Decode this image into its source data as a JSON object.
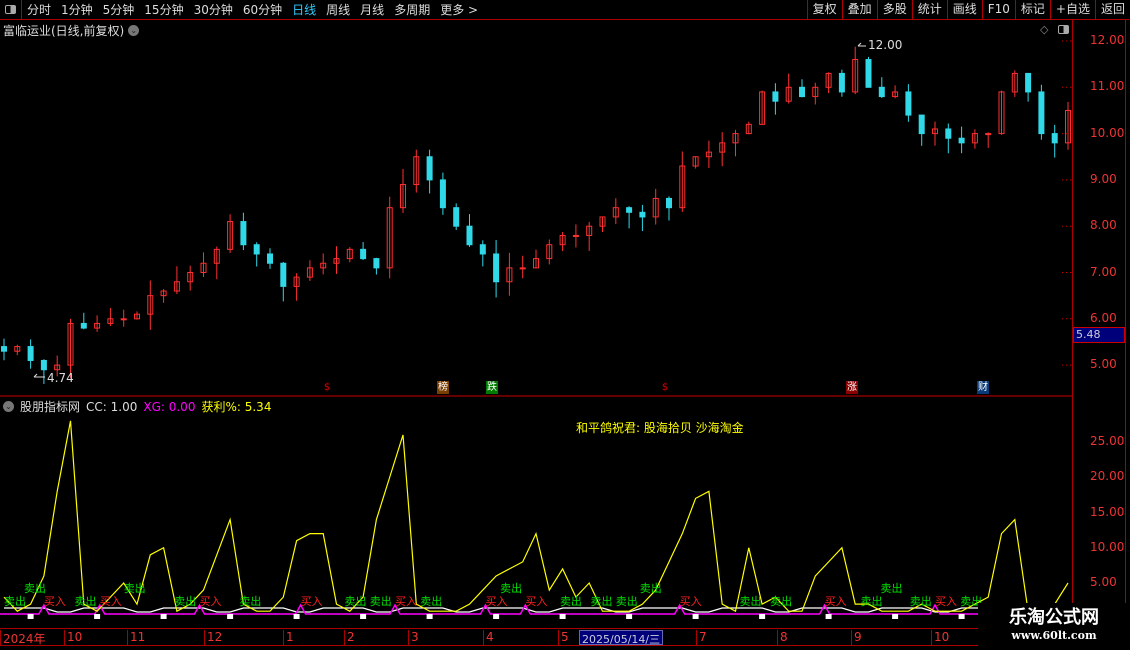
{
  "toolbar": {
    "periods": [
      "分时",
      "1分钟",
      "5分钟",
      "15分钟",
      "30分钟",
      "60分钟",
      "日线",
      "周线",
      "月线",
      "多周期",
      "更多 >"
    ],
    "active": "日线",
    "right": [
      "复权",
      "叠加",
      "多股",
      "统计",
      "画线",
      "F10",
      "标记",
      "+自选",
      "返回"
    ]
  },
  "stock_title": "富临运业(日线,前复权)",
  "price_axis": [
    "12.00",
    "11.00",
    "10.00",
    "9.00",
    "8.00",
    "7.00",
    "6.00",
    "5.00"
  ],
  "current_price": "5.48",
  "annotations": {
    "high": "12.00",
    "low": "4.74"
  },
  "markers": [
    {
      "text": "$",
      "color": "#e00000"
    },
    {
      "text": "榜",
      "color": "#7a3d00"
    },
    {
      "text": "跌",
      "color": "#007a00"
    },
    {
      "text": "$",
      "color": "#e00000"
    },
    {
      "text": "涨",
      "color": "#8a0000"
    },
    {
      "text": "财",
      "color": "#0a3a7a"
    }
  ],
  "indicator": {
    "name": "股朋指标网",
    "cc": "CC: 1.00",
    "xg": "XG: 0.00",
    "profit": "获利%: 5.34",
    "slogan": "和平鸽祝君:  股海拾贝  沙海淘金",
    "axis": [
      "25.00",
      "20.00",
      "15.00",
      "10.00",
      "5.00"
    ],
    "buy": "买入",
    "sell": "卖出"
  },
  "time_axis": [
    "2024年",
    "10",
    "11",
    "12",
    "1",
    "2",
    "3",
    "4",
    "5",
    "7",
    "8",
    "9",
    "10"
  ],
  "cursor_date": "2025/05/14/三",
  "watermark": {
    "title": "乐淘公式网",
    "url": "www.60lt.com"
  },
  "colors": {
    "up": "#ff3030",
    "down": "#30d8e8",
    "axis": "#aa0000",
    "indicator": "#ffff00",
    "buy": "#ff2020",
    "sell": "#00e000"
  },
  "chart_data": {
    "type": "candlestick",
    "price_range": [
      4.6,
      12.1
    ],
    "closes": [
      5.3,
      5.4,
      5.1,
      4.9,
      5.0,
      5.9,
      5.8,
      5.9,
      6.0,
      6.0,
      6.1,
      6.5,
      6.6,
      6.8,
      7.0,
      7.2,
      7.5,
      8.1,
      7.6,
      7.4,
      7.2,
      6.7,
      6.9,
      7.1,
      7.2,
      7.3,
      7.5,
      7.3,
      7.1,
      8.4,
      8.9,
      9.5,
      9.0,
      8.4,
      8.0,
      7.6,
      7.4,
      6.8,
      7.1,
      7.1,
      7.3,
      7.6,
      7.8,
      7.8,
      8.0,
      8.2,
      8.4,
      8.3,
      8.2,
      8.6,
      8.4,
      9.3,
      9.5,
      9.6,
      9.8,
      10.0,
      10.2,
      10.9,
      10.7,
      11.0,
      10.8,
      11.0,
      11.3,
      10.9,
      11.6,
      11.0,
      10.8,
      10.9,
      10.4,
      10.0,
      10.1,
      9.9,
      9.8,
      10.0,
      10.0,
      10.9,
      11.3,
      10.9,
      10.0,
      9.8,
      10.5
    ],
    "indicator_range": [
      0,
      29
    ],
    "indicator": [
      3,
      1,
      2,
      6,
      18,
      28,
      2,
      1,
      3,
      5,
      2,
      9,
      10,
      1,
      2,
      4,
      9,
      14,
      2,
      1,
      1,
      3,
      11,
      12,
      12,
      2,
      1,
      3,
      14,
      20,
      26,
      2,
      1,
      1,
      1,
      2,
      4,
      6,
      7,
      8,
      12,
      4,
      7,
      3,
      5,
      1,
      1,
      1,
      2,
      4,
      8,
      12,
      17,
      18,
      2,
      1,
      10,
      2,
      3,
      1,
      1,
      6,
      8,
      10,
      2,
      2,
      1,
      1,
      1,
      2,
      1,
      1,
      1,
      2,
      3,
      12,
      14,
      1,
      1,
      2,
      5
    ],
    "signals": [
      [
        0,
        "sell"
      ],
      [
        1.5,
        "sell"
      ],
      [
        3,
        "buy"
      ],
      [
        5.3,
        "sell"
      ],
      [
        7.2,
        "buy"
      ],
      [
        9,
        "sell"
      ],
      [
        12.8,
        "sell"
      ],
      [
        14.7,
        "buy"
      ],
      [
        17.7,
        "sell"
      ],
      [
        22.3,
        "buy"
      ],
      [
        25.6,
        "sell"
      ],
      [
        27.5,
        "sell"
      ],
      [
        29.4,
        "buy"
      ],
      [
        31.3,
        "sell"
      ],
      [
        36.2,
        "buy"
      ],
      [
        37.3,
        "sell"
      ],
      [
        39.2,
        "buy"
      ],
      [
        41.8,
        "sell"
      ],
      [
        44.1,
        "sell"
      ],
      [
        46,
        "sell"
      ],
      [
        47.8,
        "sell"
      ],
      [
        50.8,
        "buy"
      ],
      [
        55.3,
        "sell"
      ],
      [
        57.6,
        "sell"
      ],
      [
        61.7,
        "buy"
      ],
      [
        64.4,
        "sell"
      ],
      [
        65.9,
        "sell"
      ],
      [
        68.1,
        "sell"
      ],
      [
        70,
        "buy"
      ],
      [
        71.9,
        "sell"
      ]
    ]
  }
}
